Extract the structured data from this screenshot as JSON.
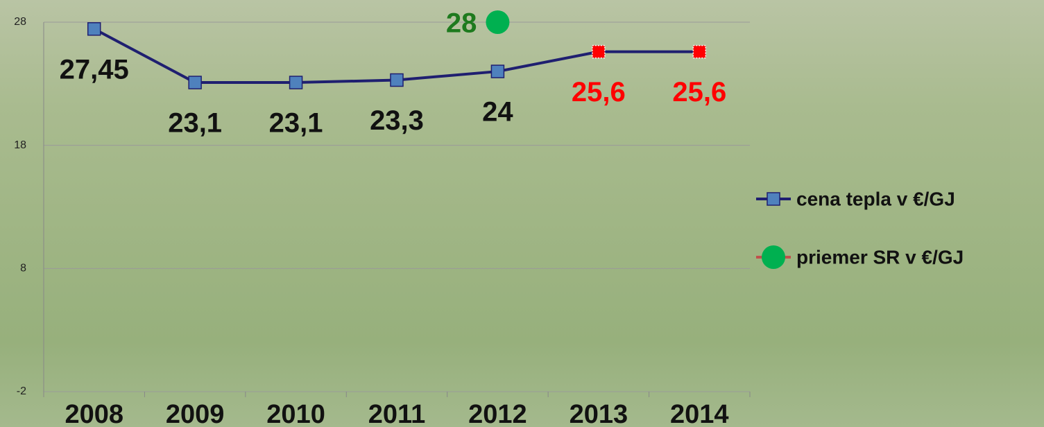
{
  "chart_data": {
    "type": "line",
    "categories": [
      "2008",
      "2009",
      "2010",
      "2011",
      "2012",
      "2013",
      "2014"
    ],
    "ylim": [
      -2,
      28
    ],
    "yticks": [
      -2,
      8,
      18,
      28
    ],
    "grid": true,
    "legend": "right",
    "series": [
      {
        "name": "cena tepla v €/GJ",
        "color": "#1f1f70",
        "marker": "square",
        "marker_color": "#4f81bd",
        "values": [
          27.45,
          23.1,
          23.1,
          23.3,
          24,
          25.6,
          25.6
        ],
        "value_labels": [
          "27,45",
          "23,1",
          "23,1",
          "23,3",
          "24",
          "25,6",
          "25,6"
        ],
        "marker_colors": [
          "#4f81bd",
          "#4f81bd",
          "#4f81bd",
          "#4f81bd",
          "#4f81bd",
          "#ff0000",
          "#ff0000"
        ],
        "label_colors": [
          "#111111",
          "#111111",
          "#111111",
          "#111111",
          "#111111",
          "#ff0000",
          "#ff0000"
        ]
      },
      {
        "name": "priemer SR v €/GJ",
        "color": "#c0504d",
        "marker": "circle",
        "marker_color": "#00b050",
        "values": [
          null,
          null,
          null,
          null,
          28,
          null,
          null
        ],
        "value_labels": [
          null,
          null,
          null,
          null,
          "28",
          null,
          null
        ],
        "marker_colors": [
          null,
          null,
          null,
          null,
          "#00b050",
          null,
          null
        ],
        "label_colors": [
          null,
          null,
          null,
          null,
          "#1e7a1e",
          null,
          null
        ]
      }
    ]
  }
}
